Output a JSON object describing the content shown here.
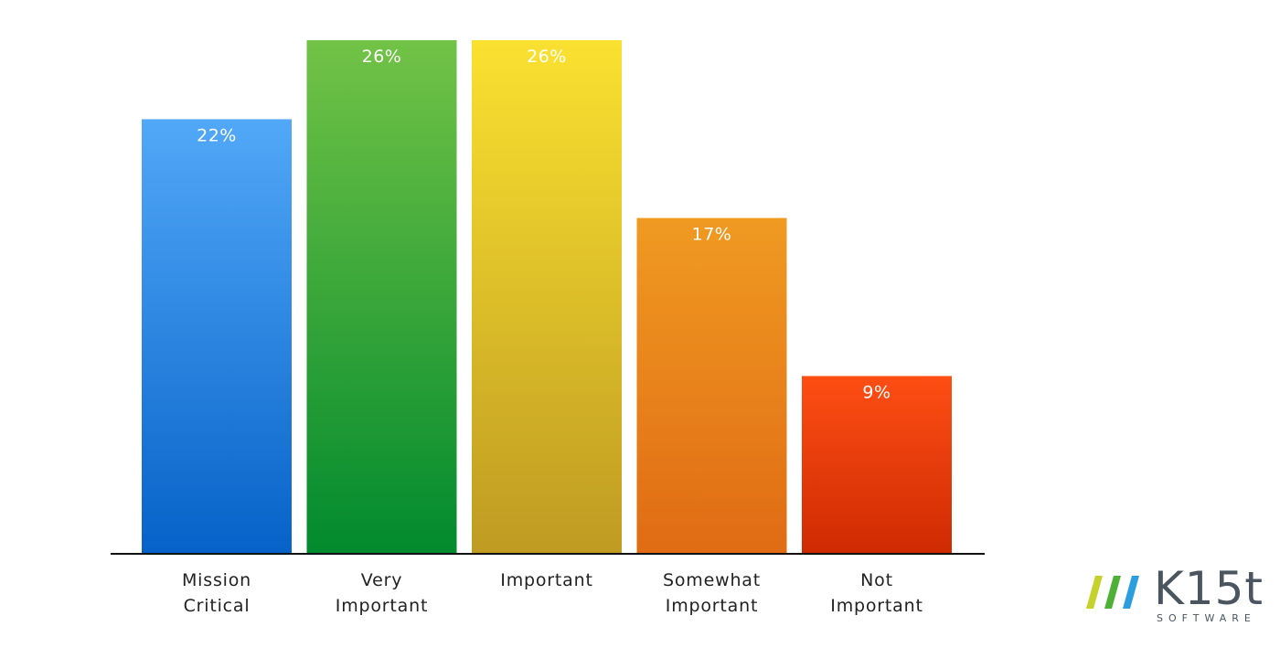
{
  "chart_data": {
    "type": "bar",
    "categories": [
      [
        "Mission",
        "Critical"
      ],
      [
        "Very",
        "Important"
      ],
      [
        "Important"
      ],
      [
        "Somewhat",
        "Important"
      ],
      [
        "Not",
        "Important"
      ]
    ],
    "values": [
      22,
      26,
      26,
      17,
      9
    ],
    "data_labels": [
      "22%",
      "26%",
      "26%",
      "17%",
      "9%"
    ],
    "ylim": [
      0,
      26
    ],
    "grid": false,
    "legend": "none",
    "colors": [
      [
        "#52a8f8",
        "#0662c8"
      ],
      [
        "#72c346",
        "#018a2e"
      ],
      [
        "#fae130",
        "#bf9b22"
      ],
      [
        "#f09a22",
        "#e06b14"
      ],
      [
        "#fe4e14",
        "#ce2a02"
      ]
    ]
  },
  "logo": {
    "word": "K15t",
    "sub": "SOFTWARE",
    "mark_colors": [
      "#c6d22c",
      "#4fb037",
      "#2b9de0"
    ]
  }
}
